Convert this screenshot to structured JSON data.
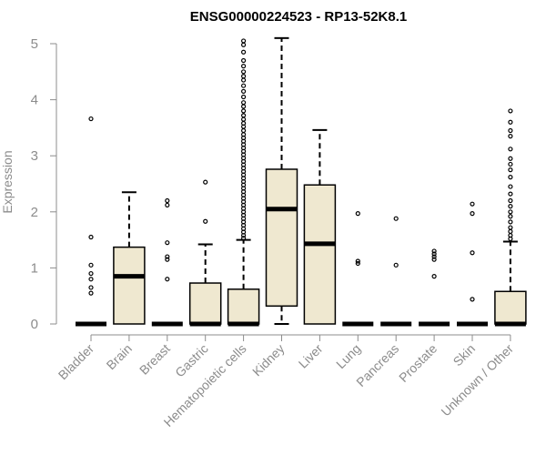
{
  "chart_data": {
    "type": "boxplot",
    "title": "ENSG00000224523 - RP13-52K8.1",
    "ylabel": "Expression",
    "xlabel": "",
    "ylim": [
      0,
      5
    ],
    "yticks": [
      0,
      1,
      2,
      3,
      4,
      5
    ],
    "grid": false,
    "colors": {
      "box_fill": "#efe8d0",
      "stroke": "#000000",
      "axis": "#8c8c8c"
    },
    "categories": [
      "Bladder",
      "Brain",
      "Breast",
      "Gastric",
      "Hematopoietic cells",
      "Kidney",
      "Liver",
      "Lung",
      "Pancreas",
      "Prostate",
      "Skin",
      "Unknown / Other"
    ],
    "boxes": [
      {
        "name": "Bladder",
        "q1": 0,
        "median": 0,
        "q3": 0,
        "whisker_low": 0,
        "whisker_high": 0,
        "outliers": [
          3.66,
          1.55,
          1.05,
          0.9,
          0.8,
          0.65,
          0.55
        ]
      },
      {
        "name": "Brain",
        "q1": 0,
        "median": 0.85,
        "q3": 1.37,
        "whisker_low": 0,
        "whisker_high": 2.35,
        "outliers": []
      },
      {
        "name": "Breast",
        "q1": 0,
        "median": 0,
        "q3": 0,
        "whisker_low": 0,
        "whisker_high": 0,
        "outliers": [
          2.2,
          2.12,
          1.45,
          1.2,
          1.15,
          0.8
        ]
      },
      {
        "name": "Gastric",
        "q1": 0,
        "median": 0,
        "q3": 0.73,
        "whisker_low": 0,
        "whisker_high": 1.42,
        "outliers": [
          2.53,
          1.83
        ]
      },
      {
        "name": "Hematopoietic cells",
        "q1": 0,
        "median": 0,
        "q3": 0.62,
        "whisker_low": 0,
        "whisker_high": 1.5,
        "outliers": [
          5.05,
          4.98,
          4.85,
          4.7,
          4.6,
          4.5,
          4.42,
          4.35,
          4.25,
          4.15,
          4.05,
          3.95,
          3.88,
          3.8,
          3.72,
          3.65,
          3.58,
          3.52,
          3.45,
          3.38,
          3.32,
          3.26,
          3.2,
          3.14,
          3.08,
          3.02,
          2.96,
          2.9,
          2.84,
          2.78,
          2.72,
          2.66,
          2.6,
          2.54,
          2.48,
          2.42,
          2.36,
          2.3,
          2.24,
          2.18,
          2.12,
          2.06,
          2.0,
          1.94,
          1.88,
          1.82,
          1.76,
          1.7,
          1.64,
          1.58,
          1.53
        ]
      },
      {
        "name": "Kidney",
        "q1": 0.32,
        "median": 2.05,
        "q3": 2.76,
        "whisker_low": 0,
        "whisker_high": 5.1,
        "outliers": []
      },
      {
        "name": "Liver",
        "q1": 0,
        "median": 1.43,
        "q3": 2.48,
        "whisker_low": 0,
        "whisker_high": 3.46,
        "outliers": []
      },
      {
        "name": "Lung",
        "q1": 0,
        "median": 0,
        "q3": 0,
        "whisker_low": 0,
        "whisker_high": 0,
        "outliers": [
          1.97,
          1.12,
          1.08
        ]
      },
      {
        "name": "Pancreas",
        "q1": 0,
        "median": 0,
        "q3": 0,
        "whisker_low": 0,
        "whisker_high": 0,
        "outliers": [
          1.88,
          1.05
        ]
      },
      {
        "name": "Prostate",
        "q1": 0,
        "median": 0,
        "q3": 0,
        "whisker_low": 0,
        "whisker_high": 0,
        "outliers": [
          1.3,
          1.25,
          1.2,
          1.15,
          0.85
        ]
      },
      {
        "name": "Skin",
        "q1": 0,
        "median": 0,
        "q3": 0,
        "whisker_low": 0,
        "whisker_high": 0,
        "outliers": [
          2.14,
          1.97,
          1.27,
          0.44
        ]
      },
      {
        "name": "Unknown / Other",
        "q1": 0,
        "median": 0,
        "q3": 0.58,
        "whisker_low": 0,
        "whisker_high": 1.47,
        "outliers": [
          3.8,
          3.6,
          3.45,
          3.35,
          3.12,
          2.95,
          2.85,
          2.75,
          2.62,
          2.45,
          2.32,
          2.2,
          2.1,
          2.0,
          1.92,
          1.82,
          1.72,
          1.65,
          1.58,
          1.52
        ]
      }
    ]
  }
}
